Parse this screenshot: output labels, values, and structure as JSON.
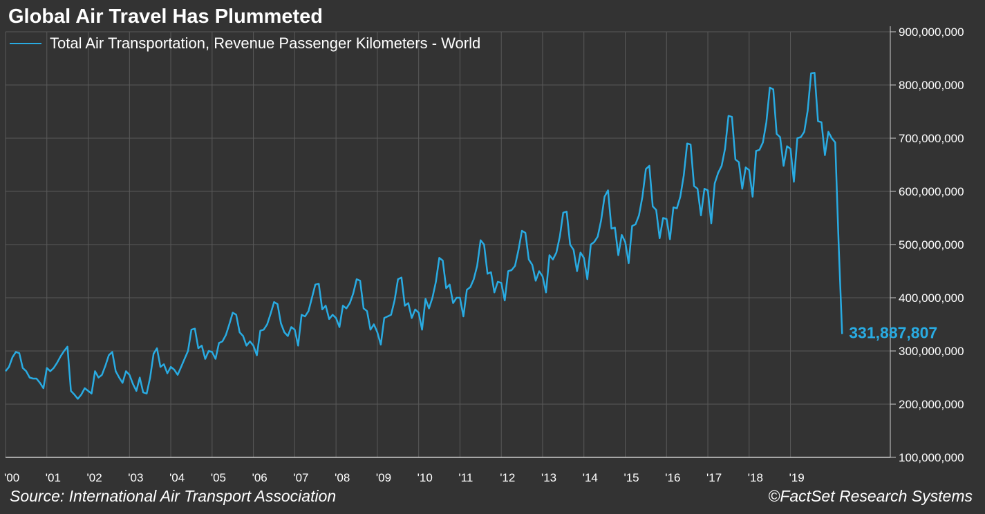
{
  "chart_data": {
    "type": "line",
    "title": "Global Air Travel Has Plummeted",
    "series": [
      {
        "name": "Total Air Transportation, Revenue Passenger Kilometers - World",
        "color": "#29abe2",
        "points": [
          [
            "2000-01",
            262000000
          ],
          [
            "2000-02",
            270000000
          ],
          [
            "2000-03",
            288000000
          ],
          [
            "2000-04",
            298000000
          ],
          [
            "2000-05",
            296000000
          ],
          [
            "2000-06",
            268000000
          ],
          [
            "2000-07",
            262000000
          ],
          [
            "2000-08",
            250000000
          ],
          [
            "2000-09",
            248000000
          ],
          [
            "2000-10",
            248000000
          ],
          [
            "2000-11",
            240000000
          ],
          [
            "2000-12",
            230000000
          ],
          [
            "2001-01",
            268000000
          ],
          [
            "2001-02",
            262000000
          ],
          [
            "2001-03",
            268000000
          ],
          [
            "2001-04",
            278000000
          ],
          [
            "2001-05",
            290000000
          ],
          [
            "2001-06",
            300000000
          ],
          [
            "2001-07",
            308000000
          ],
          [
            "2001-08",
            225000000
          ],
          [
            "2001-09",
            218000000
          ],
          [
            "2001-10",
            210000000
          ],
          [
            "2001-11",
            218000000
          ],
          [
            "2001-12",
            230000000
          ],
          [
            "2002-01",
            225000000
          ],
          [
            "2002-02",
            220000000
          ],
          [
            "2002-03",
            262000000
          ],
          [
            "2002-04",
            250000000
          ],
          [
            "2002-05",
            255000000
          ],
          [
            "2002-06",
            272000000
          ],
          [
            "2002-07",
            292000000
          ],
          [
            "2002-08",
            298000000
          ],
          [
            "2002-09",
            262000000
          ],
          [
            "2002-10",
            250000000
          ],
          [
            "2002-11",
            240000000
          ],
          [
            "2002-12",
            262000000
          ],
          [
            "2003-01",
            255000000
          ],
          [
            "2003-02",
            238000000
          ],
          [
            "2003-03",
            225000000
          ],
          [
            "2003-04",
            250000000
          ],
          [
            "2003-05",
            222000000
          ],
          [
            "2003-06",
            220000000
          ],
          [
            "2003-07",
            250000000
          ],
          [
            "2003-08",
            295000000
          ],
          [
            "2003-09",
            305000000
          ],
          [
            "2003-10",
            270000000
          ],
          [
            "2003-11",
            275000000
          ],
          [
            "2003-12",
            258000000
          ],
          [
            "2004-01",
            270000000
          ],
          [
            "2004-02",
            265000000
          ],
          [
            "2004-03",
            255000000
          ],
          [
            "2004-04",
            270000000
          ],
          [
            "2004-05",
            285000000
          ],
          [
            "2004-06",
            300000000
          ],
          [
            "2004-07",
            340000000
          ],
          [
            "2004-08",
            342000000
          ],
          [
            "2004-09",
            305000000
          ],
          [
            "2004-10",
            310000000
          ],
          [
            "2004-11",
            285000000
          ],
          [
            "2004-12",
            300000000
          ],
          [
            "2005-01",
            298000000
          ],
          [
            "2005-02",
            285000000
          ],
          [
            "2005-03",
            315000000
          ],
          [
            "2005-04",
            318000000
          ],
          [
            "2005-05",
            330000000
          ],
          [
            "2005-06",
            350000000
          ],
          [
            "2005-07",
            372000000
          ],
          [
            "2005-08",
            368000000
          ],
          [
            "2005-09",
            335000000
          ],
          [
            "2005-10",
            328000000
          ],
          [
            "2005-11",
            310000000
          ],
          [
            "2005-12",
            318000000
          ],
          [
            "2006-01",
            310000000
          ],
          [
            "2006-02",
            292000000
          ],
          [
            "2006-03",
            338000000
          ],
          [
            "2006-04",
            340000000
          ],
          [
            "2006-05",
            350000000
          ],
          [
            "2006-06",
            370000000
          ],
          [
            "2006-07",
            392000000
          ],
          [
            "2006-08",
            388000000
          ],
          [
            "2006-09",
            352000000
          ],
          [
            "2006-10",
            335000000
          ],
          [
            "2006-11",
            328000000
          ],
          [
            "2006-12",
            345000000
          ],
          [
            "2007-01",
            340000000
          ],
          [
            "2007-02",
            310000000
          ],
          [
            "2007-03",
            368000000
          ],
          [
            "2007-04",
            365000000
          ],
          [
            "2007-05",
            375000000
          ],
          [
            "2007-06",
            400000000
          ],
          [
            "2007-07",
            425000000
          ],
          [
            "2007-08",
            426000000
          ],
          [
            "2007-09",
            378000000
          ],
          [
            "2007-10",
            385000000
          ],
          [
            "2007-11",
            360000000
          ],
          [
            "2007-12",
            368000000
          ],
          [
            "2008-01",
            362000000
          ],
          [
            "2008-02",
            345000000
          ],
          [
            "2008-03",
            385000000
          ],
          [
            "2008-04",
            380000000
          ],
          [
            "2008-05",
            390000000
          ],
          [
            "2008-06",
            408000000
          ],
          [
            "2008-07",
            435000000
          ],
          [
            "2008-08",
            432000000
          ],
          [
            "2008-09",
            380000000
          ],
          [
            "2008-10",
            375000000
          ],
          [
            "2008-11",
            340000000
          ],
          [
            "2008-12",
            350000000
          ],
          [
            "2009-01",
            335000000
          ],
          [
            "2009-02",
            312000000
          ],
          [
            "2009-03",
            362000000
          ],
          [
            "2009-04",
            365000000
          ],
          [
            "2009-05",
            368000000
          ],
          [
            "2009-06",
            395000000
          ],
          [
            "2009-07",
            435000000
          ],
          [
            "2009-08",
            438000000
          ],
          [
            "2009-09",
            385000000
          ],
          [
            "2009-10",
            390000000
          ],
          [
            "2009-11",
            362000000
          ],
          [
            "2009-12",
            378000000
          ],
          [
            "2010-01",
            372000000
          ],
          [
            "2010-02",
            340000000
          ],
          [
            "2010-03",
            398000000
          ],
          [
            "2010-04",
            380000000
          ],
          [
            "2010-05",
            400000000
          ],
          [
            "2010-06",
            430000000
          ],
          [
            "2010-07",
            475000000
          ],
          [
            "2010-08",
            470000000
          ],
          [
            "2010-09",
            418000000
          ],
          [
            "2010-10",
            425000000
          ],
          [
            "2010-11",
            390000000
          ],
          [
            "2010-12",
            400000000
          ],
          [
            "2011-01",
            400000000
          ],
          [
            "2011-02",
            365000000
          ],
          [
            "2011-03",
            415000000
          ],
          [
            "2011-04",
            420000000
          ],
          [
            "2011-05",
            435000000
          ],
          [
            "2011-06",
            460000000
          ],
          [
            "2011-07",
            508000000
          ],
          [
            "2011-08",
            500000000
          ],
          [
            "2011-09",
            445000000
          ],
          [
            "2011-10",
            448000000
          ],
          [
            "2011-11",
            410000000
          ],
          [
            "2011-12",
            430000000
          ],
          [
            "2012-01",
            428000000
          ],
          [
            "2012-02",
            395000000
          ],
          [
            "2012-03",
            450000000
          ],
          [
            "2012-04",
            452000000
          ],
          [
            "2012-05",
            460000000
          ],
          [
            "2012-06",
            490000000
          ],
          [
            "2012-07",
            526000000
          ],
          [
            "2012-08",
            522000000
          ],
          [
            "2012-09",
            472000000
          ],
          [
            "2012-10",
            462000000
          ],
          [
            "2012-11",
            432000000
          ],
          [
            "2012-12",
            450000000
          ],
          [
            "2013-01",
            440000000
          ],
          [
            "2013-02",
            410000000
          ],
          [
            "2013-03",
            480000000
          ],
          [
            "2013-04",
            472000000
          ],
          [
            "2013-05",
            485000000
          ],
          [
            "2013-06",
            515000000
          ],
          [
            "2013-07",
            560000000
          ],
          [
            "2013-08",
            562000000
          ],
          [
            "2013-09",
            500000000
          ],
          [
            "2013-10",
            490000000
          ],
          [
            "2013-11",
            450000000
          ],
          [
            "2013-12",
            485000000
          ],
          [
            "2014-01",
            475000000
          ],
          [
            "2014-02",
            435000000
          ],
          [
            "2014-03",
            500000000
          ],
          [
            "2014-04",
            505000000
          ],
          [
            "2014-05",
            515000000
          ],
          [
            "2014-06",
            545000000
          ],
          [
            "2014-07",
            590000000
          ],
          [
            "2014-08",
            602000000
          ],
          [
            "2014-09",
            530000000
          ],
          [
            "2014-10",
            532000000
          ],
          [
            "2014-11",
            480000000
          ],
          [
            "2014-12",
            518000000
          ],
          [
            "2015-01",
            505000000
          ],
          [
            "2015-02",
            465000000
          ],
          [
            "2015-03",
            535000000
          ],
          [
            "2015-04",
            538000000
          ],
          [
            "2015-05",
            555000000
          ],
          [
            "2015-06",
            590000000
          ],
          [
            "2015-07",
            642000000
          ],
          [
            "2015-08",
            648000000
          ],
          [
            "2015-09",
            572000000
          ],
          [
            "2015-10",
            565000000
          ],
          [
            "2015-11",
            512000000
          ],
          [
            "2015-12",
            550000000
          ],
          [
            "2016-01",
            548000000
          ],
          [
            "2016-02",
            510000000
          ],
          [
            "2016-03",
            570000000
          ],
          [
            "2016-04",
            568000000
          ],
          [
            "2016-05",
            590000000
          ],
          [
            "2016-06",
            630000000
          ],
          [
            "2016-07",
            690000000
          ],
          [
            "2016-08",
            688000000
          ],
          [
            "2016-09",
            610000000
          ],
          [
            "2016-10",
            605000000
          ],
          [
            "2016-11",
            555000000
          ],
          [
            "2016-12",
            605000000
          ],
          [
            "2017-01",
            602000000
          ],
          [
            "2017-02",
            540000000
          ],
          [
            "2017-03",
            615000000
          ],
          [
            "2017-04",
            635000000
          ],
          [
            "2017-05",
            648000000
          ],
          [
            "2017-06",
            680000000
          ],
          [
            "2017-07",
            742000000
          ],
          [
            "2017-08",
            740000000
          ],
          [
            "2017-09",
            660000000
          ],
          [
            "2017-10",
            655000000
          ],
          [
            "2017-11",
            605000000
          ],
          [
            "2017-12",
            645000000
          ],
          [
            "2018-01",
            640000000
          ],
          [
            "2018-02",
            590000000
          ],
          [
            "2018-03",
            676000000
          ],
          [
            "2018-04",
            678000000
          ],
          [
            "2018-05",
            692000000
          ],
          [
            "2018-06",
            730000000
          ],
          [
            "2018-07",
            795000000
          ],
          [
            "2018-08",
            792000000
          ],
          [
            "2018-09",
            708000000
          ],
          [
            "2018-10",
            702000000
          ],
          [
            "2018-11",
            648000000
          ],
          [
            "2018-12",
            685000000
          ],
          [
            "2019-01",
            680000000
          ],
          [
            "2019-02",
            618000000
          ],
          [
            "2019-03",
            700000000
          ],
          [
            "2019-04",
            702000000
          ],
          [
            "2019-05",
            712000000
          ],
          [
            "2019-06",
            752000000
          ],
          [
            "2019-07",
            822000000
          ],
          [
            "2019-08",
            823000000
          ],
          [
            "2019-09",
            732000000
          ],
          [
            "2019-10",
            730000000
          ],
          [
            "2019-11",
            668000000
          ],
          [
            "2019-12",
            712000000
          ],
          [
            "2020-01",
            700000000
          ],
          [
            "2020-02",
            692000000
          ],
          [
            "2020-03",
            500000000
          ],
          [
            "2020-04",
            331887807
          ]
        ]
      }
    ],
    "end_label": "331,887,807",
    "y_ticks": [
      {
        "value": 100000000,
        "label": "100,000,000"
      },
      {
        "value": 200000000,
        "label": "200,000,000"
      },
      {
        "value": 300000000,
        "label": "300,000,000"
      },
      {
        "value": 400000000,
        "label": "400,000,000"
      },
      {
        "value": 500000000,
        "label": "500,000,000"
      },
      {
        "value": 600000000,
        "label": "600,000,000"
      },
      {
        "value": 700000000,
        "label": "700,000,000"
      },
      {
        "value": 800000000,
        "label": "800,000,000"
      },
      {
        "value": 900000000,
        "label": "900,000,000"
      }
    ],
    "x_ticks": [
      {
        "value": "2000",
        "label": "'00"
      },
      {
        "value": "2001",
        "label": "'01"
      },
      {
        "value": "2002",
        "label": "'02"
      },
      {
        "value": "2003",
        "label": "'03"
      },
      {
        "value": "2004",
        "label": "'04"
      },
      {
        "value": "2005",
        "label": "'05"
      },
      {
        "value": "2006",
        "label": "'06"
      },
      {
        "value": "2007",
        "label": "'07"
      },
      {
        "value": "2008",
        "label": "'08"
      },
      {
        "value": "2009",
        "label": "'09"
      },
      {
        "value": "2010",
        "label": "'10"
      },
      {
        "value": "2011",
        "label": "'11"
      },
      {
        "value": "2012",
        "label": "'12"
      },
      {
        "value": "2013",
        "label": "'13"
      },
      {
        "value": "2014",
        "label": "'14"
      },
      {
        "value": "2015",
        "label": "'15"
      },
      {
        "value": "2016",
        "label": "'16"
      },
      {
        "value": "2017",
        "label": "'17"
      },
      {
        "value": "2018",
        "label": "'18"
      },
      {
        "value": "2019",
        "label": "'19"
      }
    ],
    "ylim": [
      100000000,
      900000000
    ],
    "xlim": [
      "2000-01",
      "2021-06"
    ],
    "grid": true,
    "y_axis_side": "right",
    "legend_placement": "top-left",
    "colors": {
      "background": "#333333",
      "grid": "#5a5a5a",
      "text": "#ffffff"
    }
  },
  "footer": {
    "source": "Source: International Air Transport Association",
    "copyright": "©FactSet Research Systems"
  }
}
